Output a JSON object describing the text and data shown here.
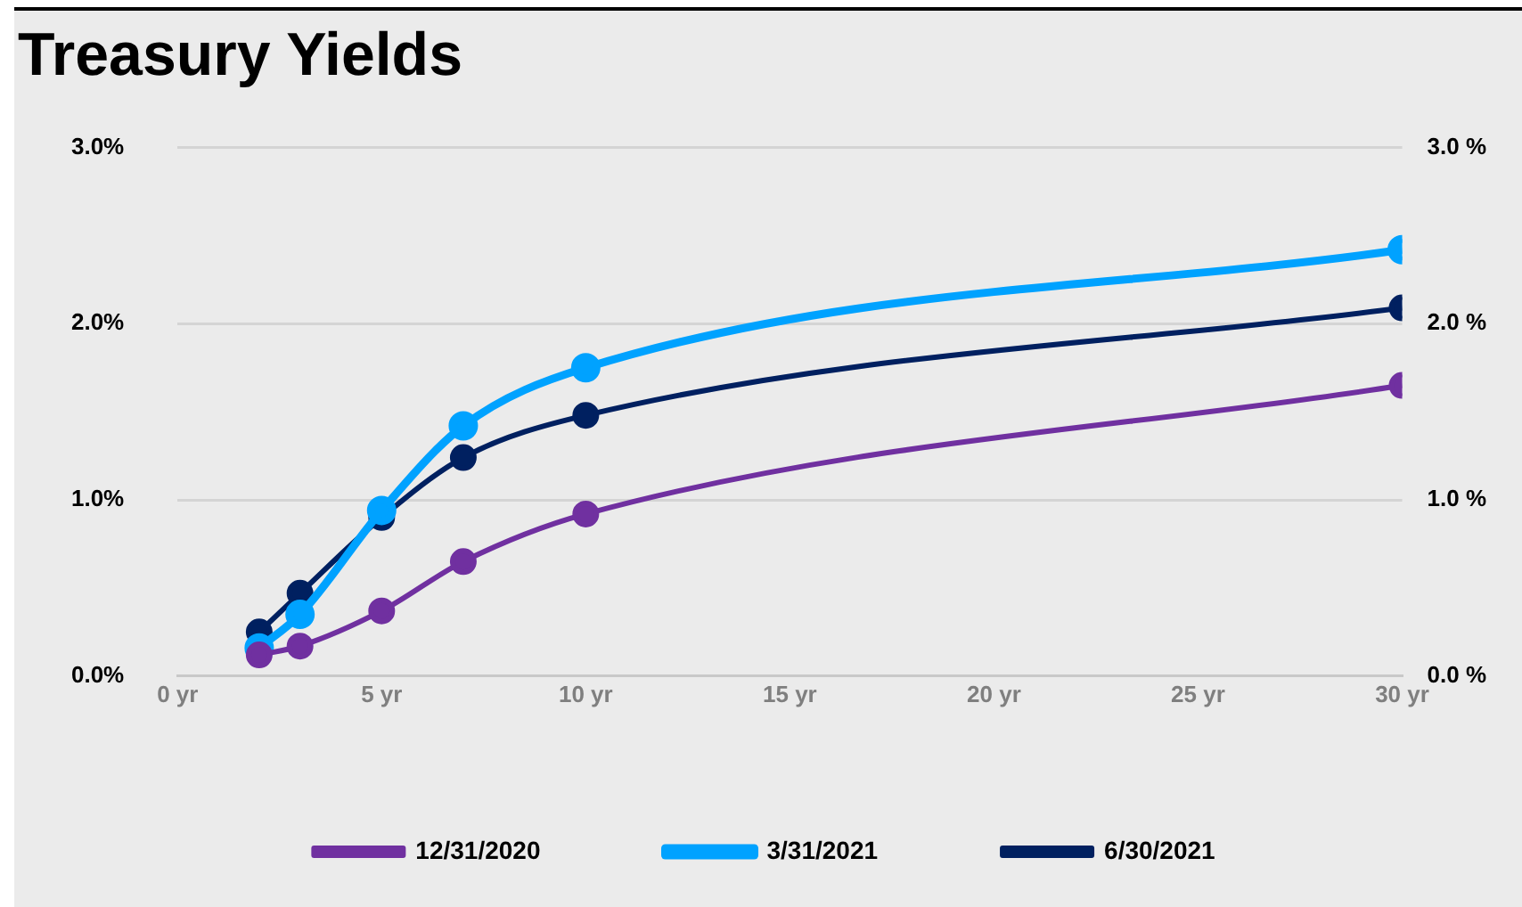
{
  "chart_data": {
    "type": "line",
    "title": "Treasury Yields",
    "x": [
      2,
      3,
      5,
      7,
      10,
      30
    ],
    "xlim": [
      0,
      30
    ],
    "xticks": [
      {
        "value": 0,
        "label": "0 yr"
      },
      {
        "value": 5,
        "label": "5 yr"
      },
      {
        "value": 10,
        "label": "10 yr"
      },
      {
        "value": 15,
        "label": "15 yr"
      },
      {
        "value": 20,
        "label": "20 yr"
      },
      {
        "value": 25,
        "label": "25 yr"
      },
      {
        "value": 30,
        "label": "30 yr"
      }
    ],
    "ylim": [
      0,
      3
    ],
    "yticks": [
      {
        "value": 0,
        "label": "0.0%"
      },
      {
        "value": 1,
        "label": "1.0%"
      },
      {
        "value": 2,
        "label": "2.0%"
      },
      {
        "value": 3,
        "label": "3.0%"
      }
    ],
    "y2lim": [
      0,
      3
    ],
    "y2ticks": [
      {
        "value": 0,
        "label": "0.0 %"
      },
      {
        "value": 1,
        "label": "1.0 %"
      },
      {
        "value": 2,
        "label": "2.0 %"
      },
      {
        "value": 3,
        "label": "3.0 %"
      }
    ],
    "series": [
      {
        "name": "12/31/2020",
        "color": "#7030a0",
        "values": [
          0.12,
          0.17,
          0.37,
          0.65,
          0.92,
          1.65
        ]
      },
      {
        "name": "3/31/2021",
        "color": "#00a2ff",
        "values": [
          0.16,
          0.35,
          0.94,
          1.42,
          1.75,
          2.42
        ]
      },
      {
        "name": "6/30/2021",
        "color": "#002060",
        "values": [
          0.25,
          0.47,
          0.9,
          1.24,
          1.48,
          2.09
        ]
      }
    ],
    "grid": "y",
    "legend": "bottom",
    "marker": "circle",
    "line_style": "solid"
  }
}
